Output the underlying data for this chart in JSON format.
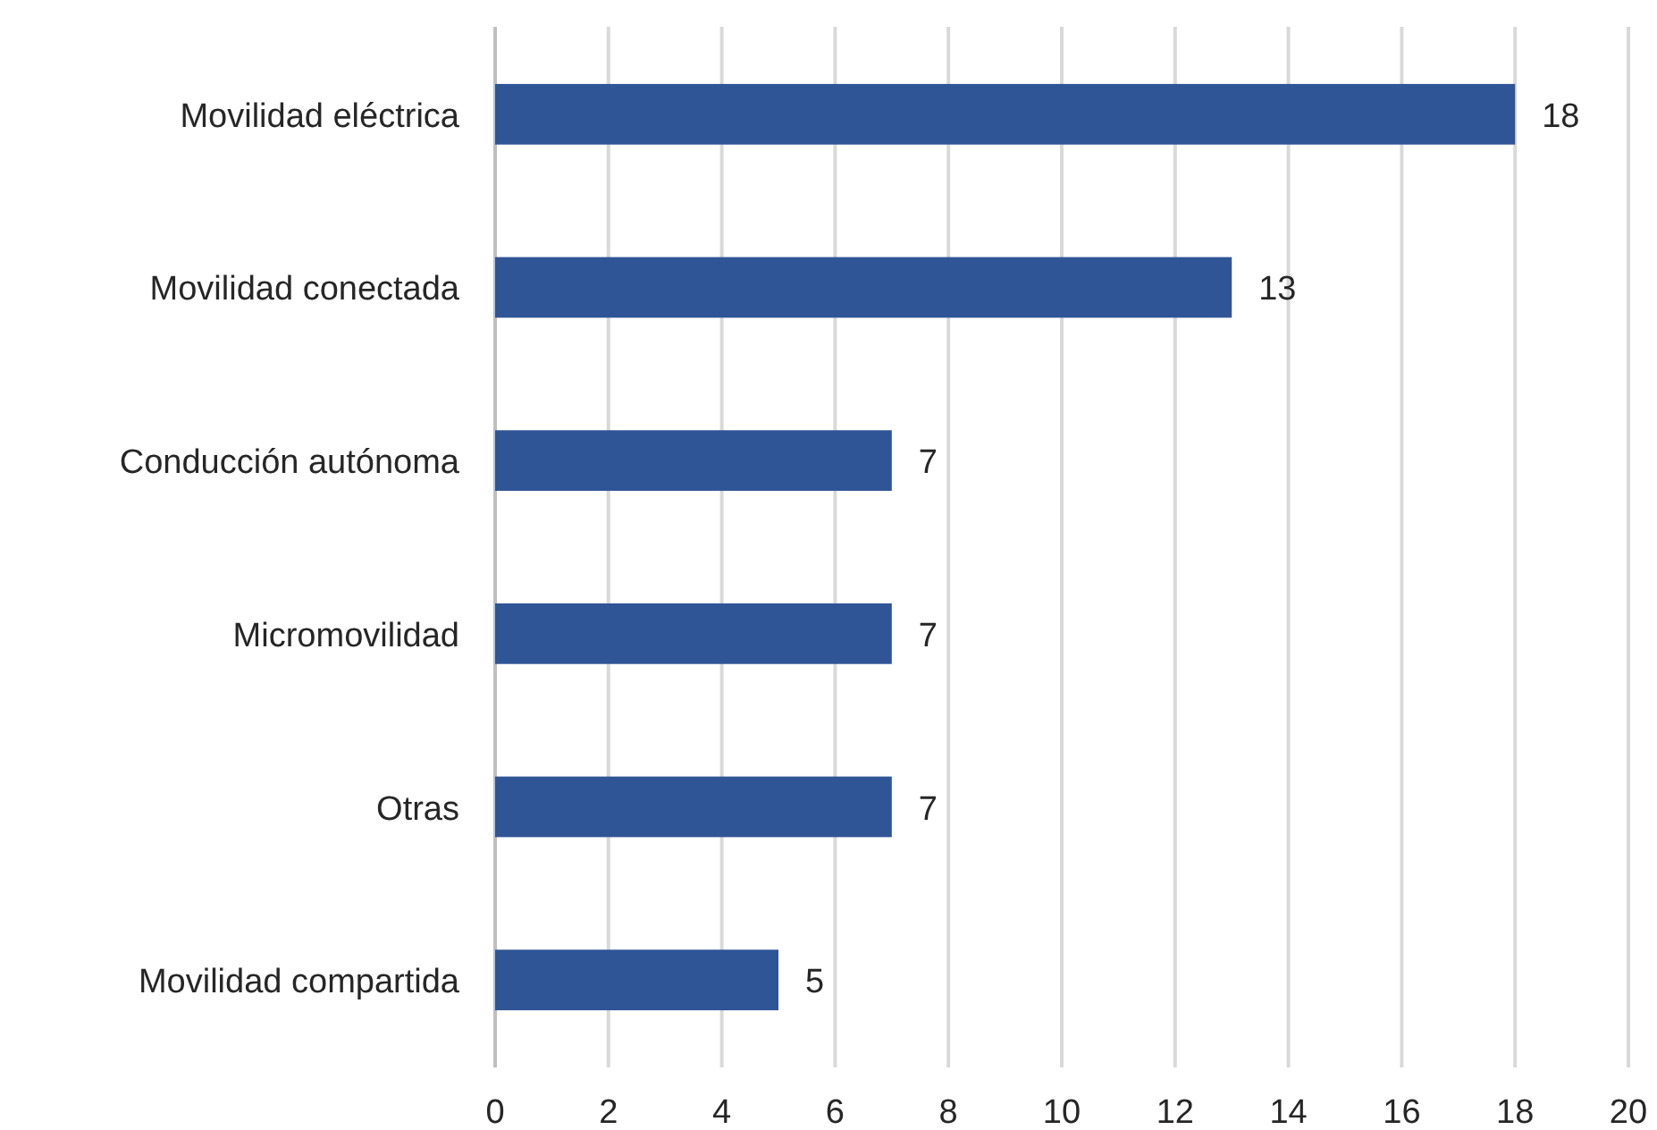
{
  "chart_data": {
    "type": "bar",
    "orientation": "horizontal",
    "categories": [
      "Movilidad eléctrica",
      "Movilidad conectada",
      "Conducción autónoma",
      "Micromovilidad",
      "Otras",
      "Movilidad compartida"
    ],
    "values": [
      18,
      13,
      7,
      7,
      7,
      5
    ],
    "color": "#2f5597",
    "xlim": [
      0,
      20
    ],
    "xticks": [
      0,
      2,
      4,
      6,
      8,
      10,
      12,
      14,
      16,
      18,
      20
    ],
    "grid": "x",
    "data_labels": true
  }
}
